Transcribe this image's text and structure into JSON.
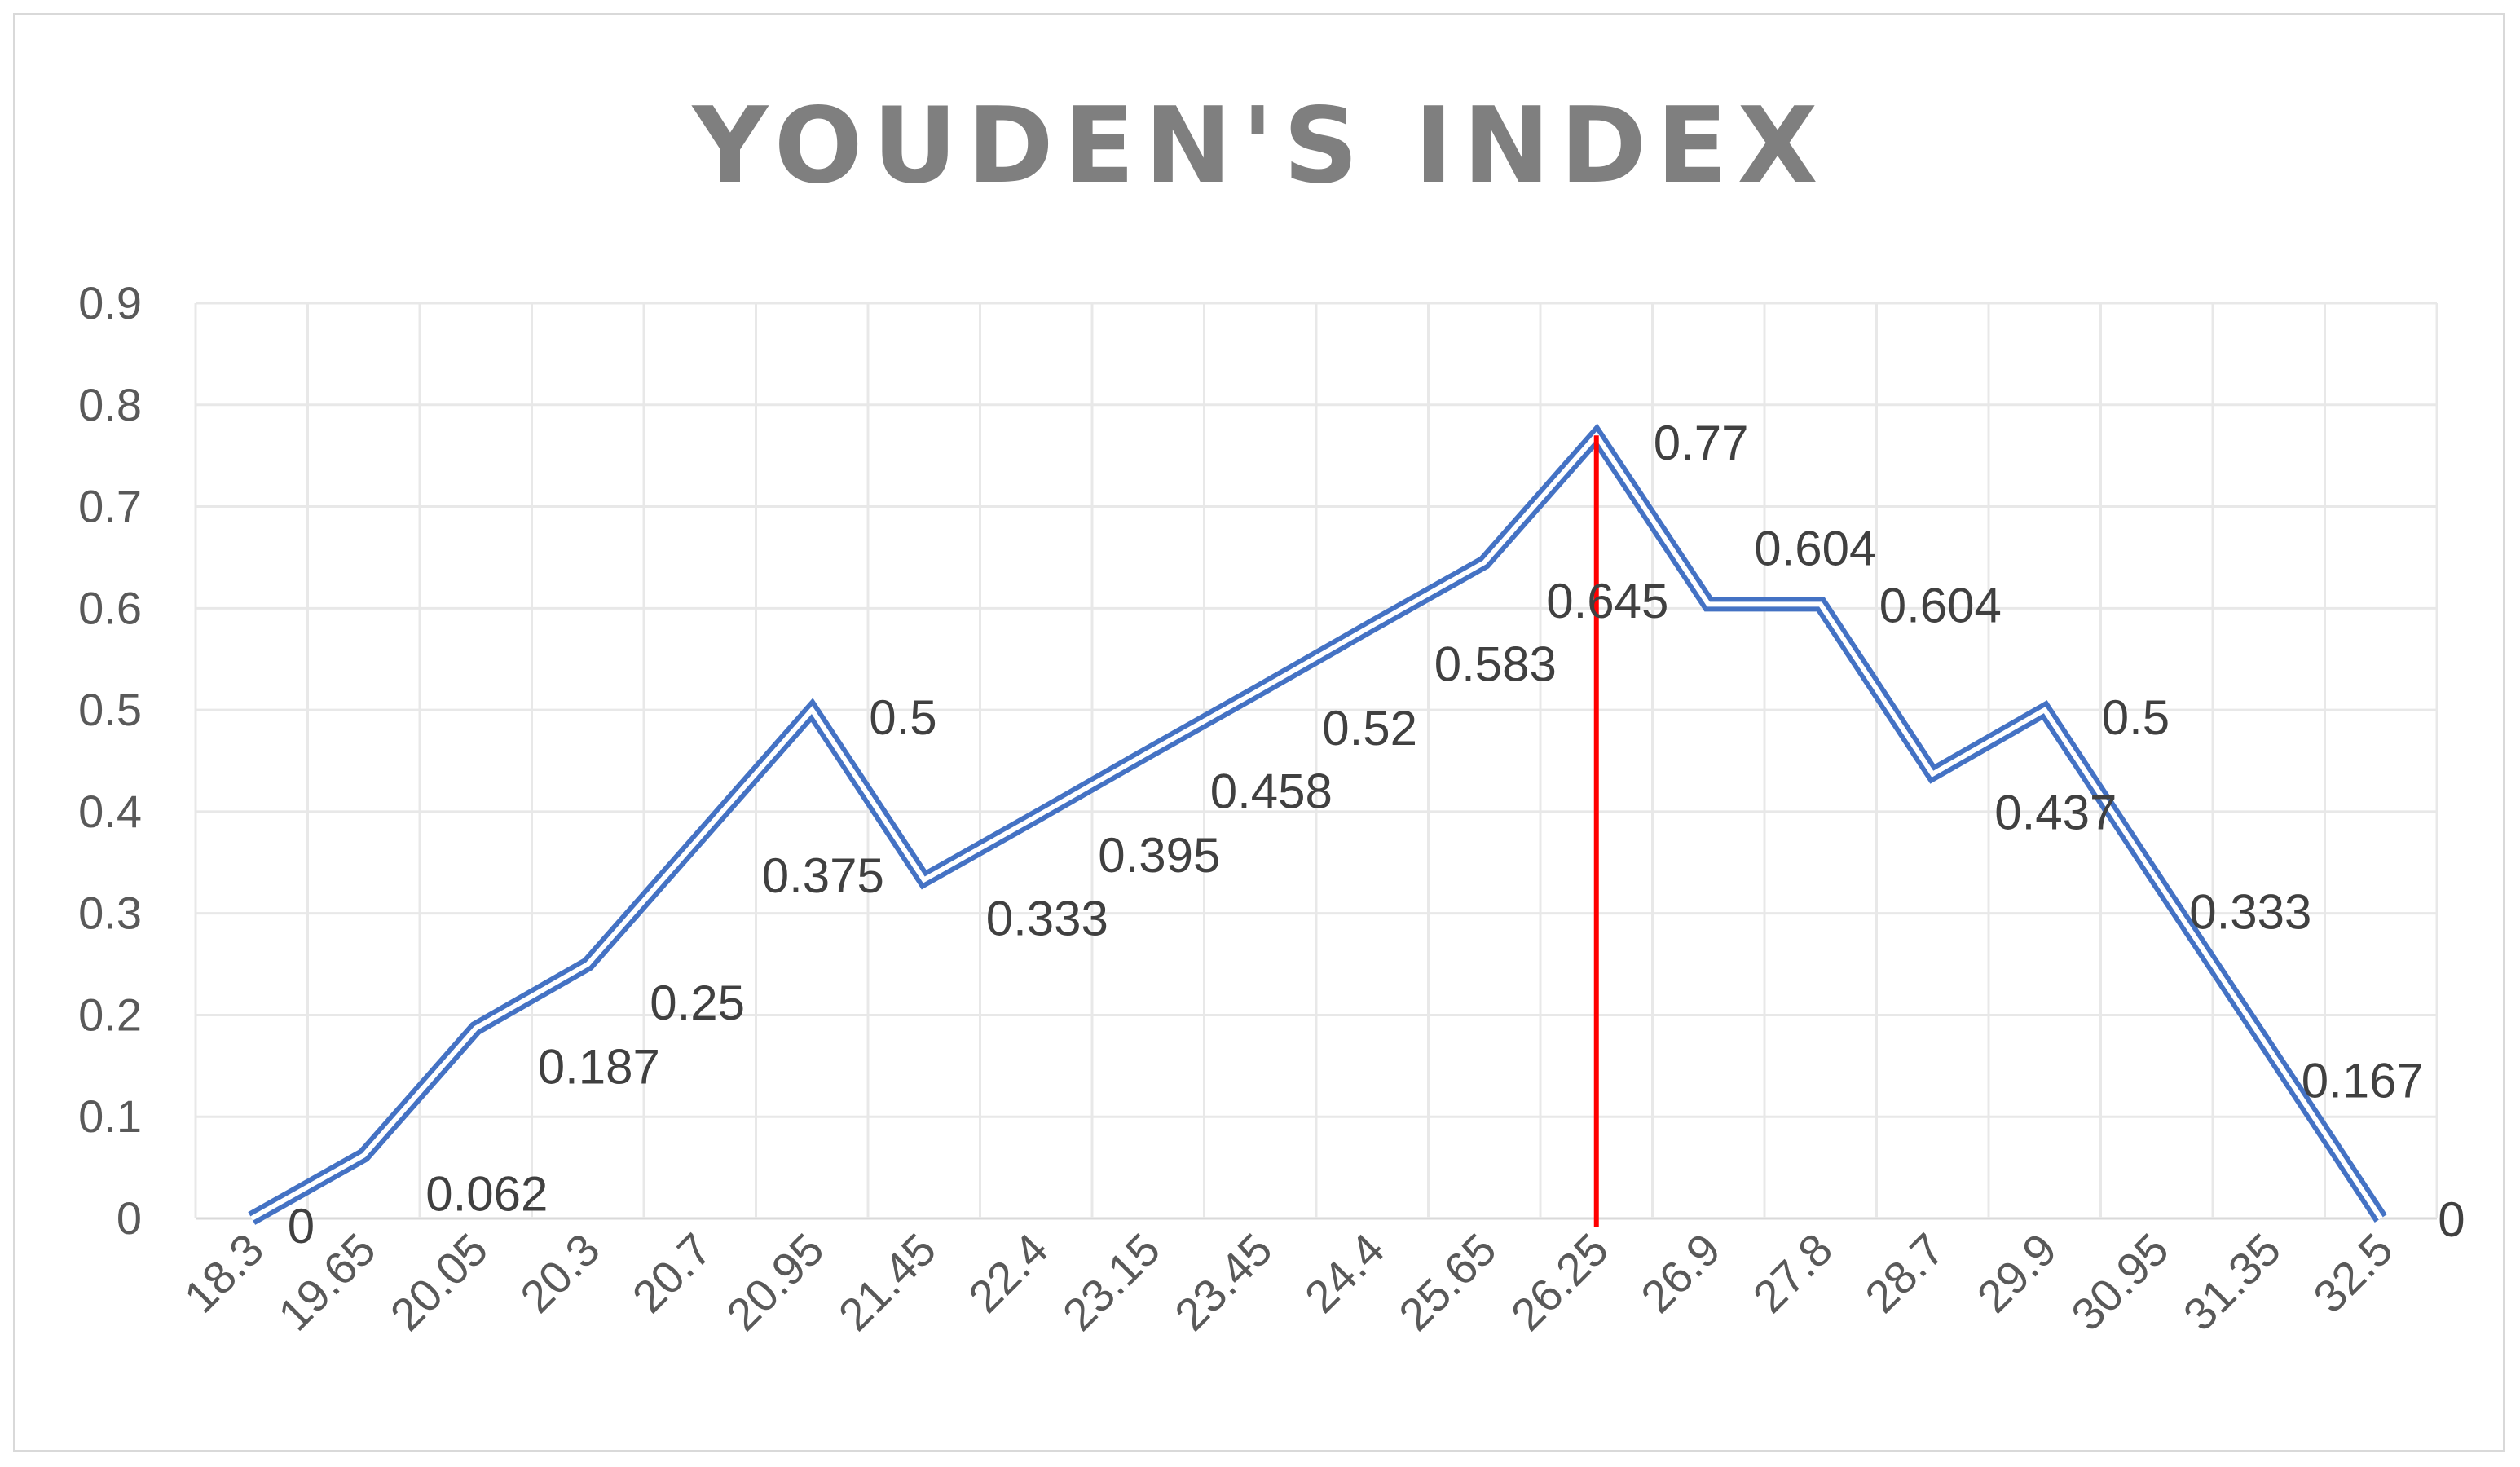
{
  "chart_data": {
    "type": "line",
    "title": "YOUDEN'S INDEX",
    "xlabel": "",
    "ylabel": "",
    "ylim": [
      0,
      0.9
    ],
    "y_ticks": [
      "0",
      "0.1",
      "0.2",
      "0.3",
      "0.4",
      "0.5",
      "0.6",
      "0.7",
      "0.8",
      "0.9"
    ],
    "grid": true,
    "legend": "none",
    "categories": [
      "18.3",
      "19.65",
      "20.05",
      "20.3",
      "20.7",
      "20.95",
      "21.45",
      "22.4",
      "23.15",
      "23.45",
      "24.4",
      "25.65",
      "26.25",
      "26.9",
      "27.8",
      "28.7",
      "29.9",
      "30.95",
      "31.35",
      "32.5"
    ],
    "series": [
      {
        "values": [
          0,
          0.062,
          0.187,
          0.25,
          0.375,
          0.5,
          0.333,
          0.395,
          0.458,
          0.52,
          0.583,
          0.645,
          0.77,
          0.604,
          0.604,
          0.437,
          0.5,
          0.333,
          0.167,
          0
        ],
        "data_labels": [
          "0",
          "0.062",
          "0.187",
          "0.25",
          "0.375",
          "0.5",
          "0.333",
          "0.395",
          "0.458",
          "0.52",
          "0.583",
          "0.645",
          "0.77",
          "0.604",
          "0.604",
          "0.437",
          "0.5",
          "0.333",
          "0.167",
          "0"
        ]
      }
    ],
    "reference_line": {
      "orientation": "vertical",
      "category": "26.25"
    },
    "colors": {
      "line": "#4472c4",
      "reference": "#ff0000",
      "grid": "#e8e8e8",
      "axis": "#d9d9d9"
    }
  }
}
